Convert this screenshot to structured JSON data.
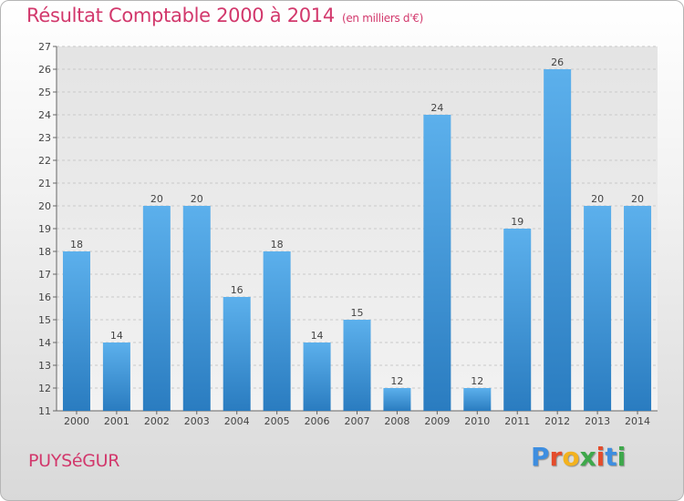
{
  "header": {
    "title": "Résultat Comptable 2000 à 2014",
    "subtitle": "(en milliers d'€)"
  },
  "footer": {
    "town": "PUYSéGUR",
    "logo_letters": [
      "P",
      "r",
      "o",
      "x",
      "i",
      "t",
      "i"
    ],
    "logo_colors": [
      "#3e8ee0",
      "#e44c2c",
      "#f3b21e",
      "#3ea84b",
      "#e44c2c",
      "#3e8ee0",
      "#3ea84b"
    ]
  },
  "chart_data": {
    "type": "bar",
    "title": "Résultat Comptable 2000 à 2014",
    "subtitle": "(en milliers d'€)",
    "xlabel": "",
    "ylabel": "",
    "categories": [
      "2000",
      "2001",
      "2002",
      "2003",
      "2004",
      "2005",
      "2006",
      "2007",
      "2008",
      "2009",
      "2010",
      "2011",
      "2012",
      "2013",
      "2014"
    ],
    "values": [
      18,
      14,
      20,
      20,
      16,
      18,
      14,
      15,
      12,
      24,
      12,
      19,
      26,
      20,
      20
    ],
    "ylim": [
      11,
      27
    ],
    "yticks": [
      11,
      12,
      13,
      14,
      15,
      16,
      17,
      18,
      19,
      20,
      21,
      22,
      23,
      24,
      25,
      26,
      27
    ],
    "grid": true,
    "bar_color": "#3d95d6"
  }
}
